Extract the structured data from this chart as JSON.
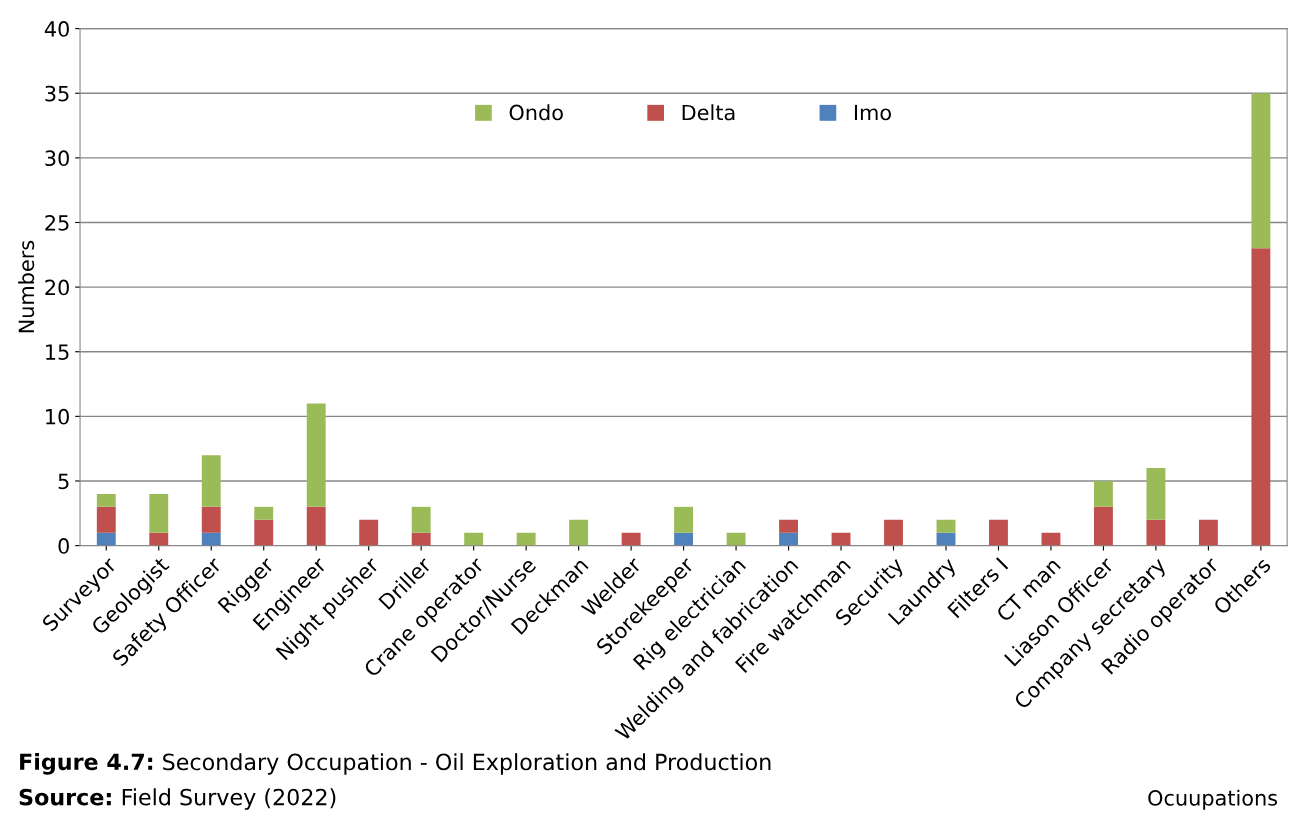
{
  "chart_data": {
    "type": "bar",
    "stacked": true,
    "ylabel": "Numbers",
    "xlabel": "Ocuupations",
    "categories": [
      "Surveyor",
      "Geologist",
      "Safety Officer",
      "Rigger",
      "Engineer",
      "Night pusher",
      "Driller",
      "Crane operator",
      "Doctor/Nurse",
      "Deckman",
      "Welder",
      "Storekeeper",
      "Rig electrician",
      "Welding and fabrication",
      "Fire watchman",
      "Security",
      "Laundry",
      "Filters I",
      "CT man",
      "Liason Officer",
      "Company secretary",
      "Radio operator",
      "Others"
    ],
    "series": [
      {
        "name": "Imo",
        "color": "#4f81bd",
        "values": [
          1,
          0,
          1,
          0,
          0,
          0,
          0,
          0,
          0,
          0,
          0,
          1,
          0,
          1,
          0,
          0,
          1,
          0,
          0,
          0,
          0,
          0,
          0
        ]
      },
      {
        "name": "Delta",
        "color": "#c0504d",
        "values": [
          2,
          1,
          2,
          2,
          3,
          2,
          1,
          0,
          0,
          0,
          1,
          0,
          0,
          1,
          1,
          2,
          0,
          2,
          1,
          3,
          2,
          2,
          23
        ]
      },
      {
        "name": "Ondo",
        "color": "#9bbb59",
        "values": [
          1,
          3,
          4,
          1,
          8,
          0,
          2,
          1,
          1,
          2,
          0,
          2,
          1,
          0,
          0,
          0,
          1,
          0,
          0,
          2,
          4,
          0,
          12
        ]
      }
    ],
    "ylim": [
      0,
      40
    ],
    "yticks": [
      0,
      5,
      10,
      15,
      20,
      25,
      30,
      35,
      40
    ],
    "grid": "y",
    "legend": "top",
    "annotations": [
      "Figure 4.7: Secondary Occupation - Oil Exploration and Production",
      "Source: Field Survey (2022)"
    ]
  }
}
